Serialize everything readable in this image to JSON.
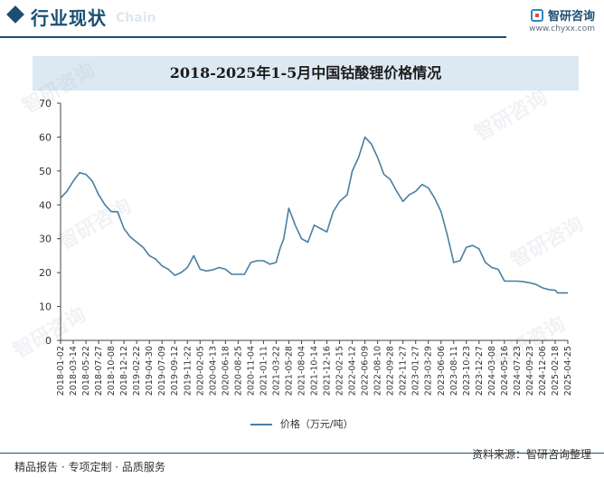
{
  "header": {
    "title": "行业现状",
    "ghost_text": "Chain",
    "logo_name": "智研咨询",
    "logo_url": "www.chyxx.com"
  },
  "watermark": "智研咨询",
  "footer": {
    "left": "精品报告 · 专项定制 · 品质服务",
    "right": "资料来源：智研咨询整理"
  },
  "colors": {
    "line": "#4a7fa0",
    "accent": "#1b4f72",
    "band": "#dce8f2"
  },
  "chart_data": {
    "type": "line",
    "title": "2018-2025年1-5月中国钴酸锂价格情况",
    "ylim": [
      0,
      70
    ],
    "yticks": [
      0,
      10,
      20,
      30,
      40,
      50,
      60,
      70
    ],
    "legend": "价格（万元/吨）",
    "legend_position": "bottom",
    "grid": false,
    "xticks": [
      "2018-01-02",
      "2018-03-14",
      "2018-05-22",
      "2018-07-27",
      "2018-10-08",
      "2018-12-12",
      "2019-02-22",
      "2019-04-30",
      "2019-07-09",
      "2019-09-12",
      "2019-11-22",
      "2020-02-05",
      "2020-04-13",
      "2020-06-18",
      "2020-08-25",
      "2020-11-04",
      "2021-01-11",
      "2021-03-22",
      "2021-05-28",
      "2021-08-04",
      "2021-10-14",
      "2021-12-16",
      "2022-02-15",
      "2022-04-12",
      "2022-06-09",
      "2022-08-10",
      "2022-09-28",
      "2022-11-27",
      "2023-01-27",
      "2023-03-29",
      "2023-06-06",
      "2023-08-11",
      "2023-10-23",
      "2023-12-27",
      "2024-03-08",
      "2024-05-16",
      "2024-07-23",
      "2024-09-23",
      "2024-12-06",
      "2025-02-18",
      "2025-04-25"
    ],
    "series": [
      {
        "name": "价格（万元/吨）",
        "x": [
          0,
          0.5,
          1,
          1.5,
          2,
          2.5,
          3,
          3.5,
          4,
          4.5,
          5,
          5.5,
          6,
          6.5,
          7,
          7.5,
          8,
          8.5,
          9,
          9.5,
          10,
          10.5,
          11,
          11.5,
          12,
          12.5,
          13,
          13.5,
          14,
          14.5,
          15,
          15.5,
          16,
          16.5,
          17,
          17.3,
          17.6,
          18,
          18.5,
          19,
          19.5,
          20,
          20.5,
          21,
          21.5,
          22,
          22.3,
          22.6,
          23,
          23.5,
          24,
          24.5,
          25,
          25.5,
          26,
          26.5,
          27,
          27.5,
          28,
          28.5,
          29,
          29.5,
          30,
          30.5,
          31,
          31.5,
          32,
          32.5,
          33,
          33.5,
          34,
          34.5,
          35,
          35.5,
          36,
          36.5,
          37,
          37.5,
          38,
          38.5,
          39,
          39.2,
          39.5,
          40
        ],
        "values": [
          42,
          44,
          47,
          49.5,
          49,
          47,
          43,
          40,
          38,
          38,
          33,
          30.5,
          29,
          27.5,
          25,
          24,
          22,
          21,
          19.2,
          20,
          21.5,
          25,
          21,
          20.5,
          20.8,
          21.5,
          21,
          19.5,
          19.5,
          19.5,
          23,
          23.5,
          23.5,
          22.5,
          23,
          27,
          30,
          39,
          34,
          30,
          29,
          34,
          33,
          32,
          38,
          41,
          42,
          43,
          50,
          54,
          60,
          58,
          54,
          49,
          47.5,
          44,
          41,
          43,
          44,
          46,
          45,
          42,
          38,
          31,
          23,
          23.5,
          27.5,
          28,
          27,
          23,
          21.5,
          21,
          17.5,
          17.5,
          17.5,
          17.3,
          17,
          16.5,
          15.5,
          15,
          14.8,
          14,
          14,
          14
        ]
      }
    ]
  }
}
